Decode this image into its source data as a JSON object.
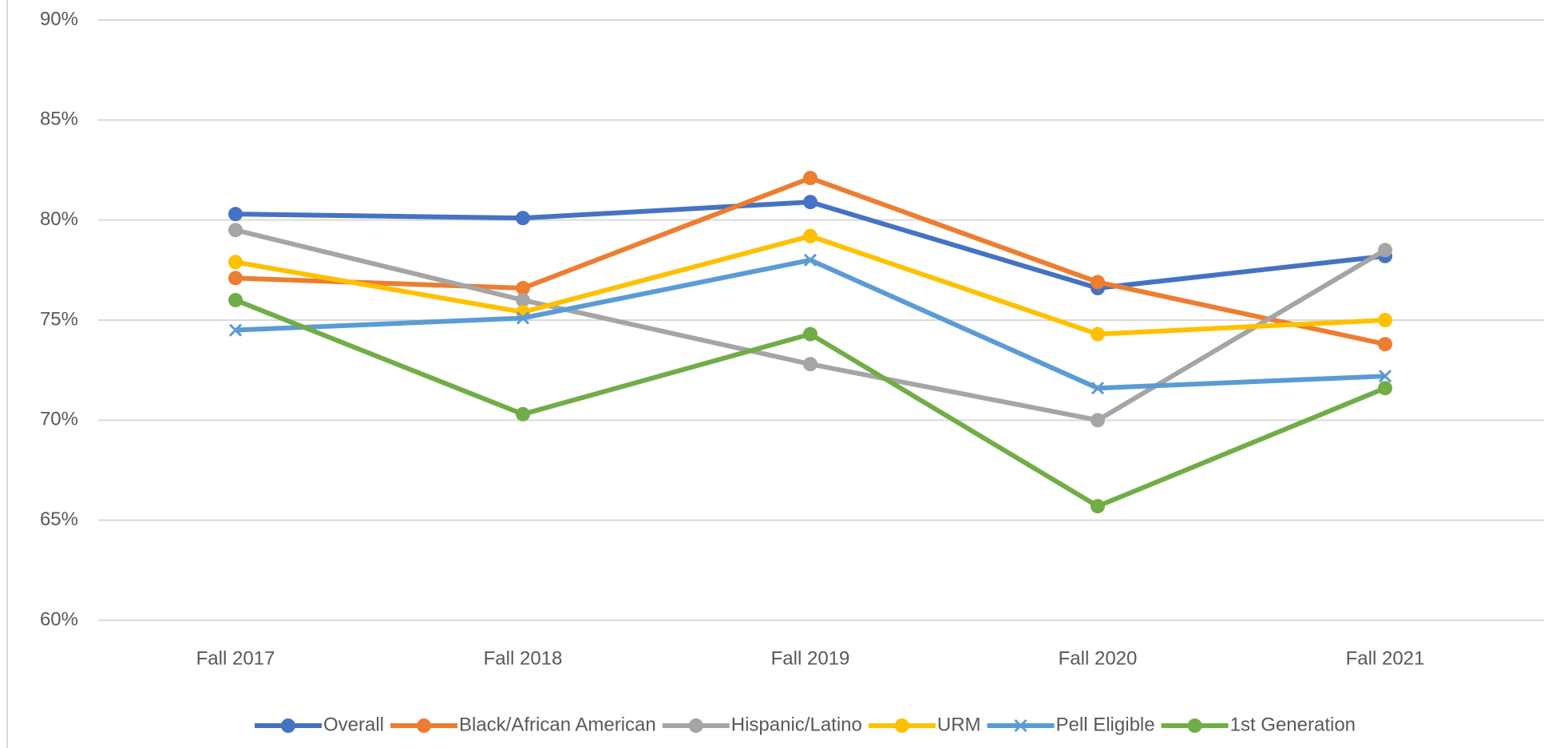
{
  "chart_data": {
    "type": "line",
    "categories": [
      "Fall 2017",
      "Fall 2018",
      "Fall 2019",
      "Fall 2020",
      "Fall 2021"
    ],
    "ylim": [
      60,
      90
    ],
    "yticks": [
      {
        "value": 60,
        "label": "60%"
      },
      {
        "value": 65,
        "label": "65%"
      },
      {
        "value": 70,
        "label": "70%"
      },
      {
        "value": 75,
        "label": "75%"
      },
      {
        "value": 80,
        "label": "80%"
      },
      {
        "value": 85,
        "label": "85%"
      },
      {
        "value": 90,
        "label": "90%"
      }
    ],
    "grid": true,
    "legend": "bottom",
    "series": [
      {
        "name": "Overall",
        "color": "#4472c4",
        "marker": "circle",
        "values": [
          80.3,
          80.1,
          80.9,
          76.6,
          78.2
        ]
      },
      {
        "name": "Black/African American",
        "color": "#ed7d31",
        "marker": "circle",
        "values": [
          77.1,
          76.6,
          82.1,
          76.9,
          73.8
        ]
      },
      {
        "name": "Hispanic/Latino",
        "color": "#a5a5a5",
        "marker": "circle",
        "values": [
          79.5,
          76.0,
          72.8,
          70.0,
          78.5
        ]
      },
      {
        "name": "URM",
        "color": "#ffc000",
        "marker": "circle",
        "values": [
          77.9,
          75.4,
          79.2,
          74.3,
          75.0
        ]
      },
      {
        "name": "Pell Eligible",
        "color": "#5b9bd5",
        "marker": "x",
        "values": [
          74.5,
          75.1,
          78.0,
          71.6,
          72.2
        ]
      },
      {
        "name": "1st Generation",
        "color": "#70ad47",
        "marker": "circle",
        "values": [
          76.0,
          70.3,
          74.3,
          65.7,
          71.6
        ]
      }
    ]
  }
}
